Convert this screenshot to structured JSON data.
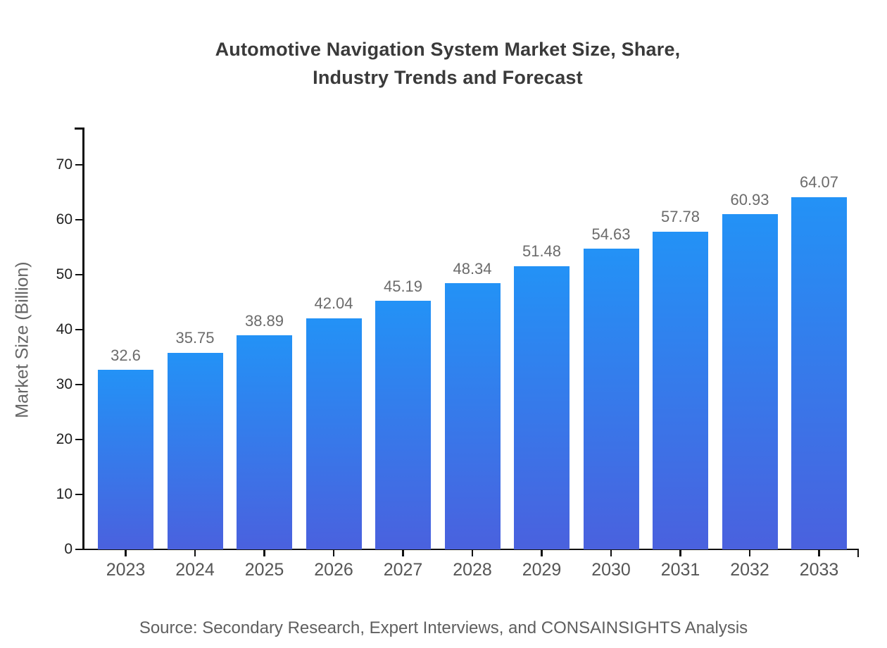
{
  "title": {
    "line1": "Automotive Navigation System Market Size, Share,",
    "line2": "Industry Trends and Forecast"
  },
  "chart_data": {
    "type": "bar",
    "title": "Automotive Navigation System Market Size, Share, Industry Trends and Forecast",
    "categories": [
      "2023",
      "2024",
      "2025",
      "2026",
      "2027",
      "2028",
      "2029",
      "2030",
      "2031",
      "2032",
      "2033"
    ],
    "values": [
      32.6,
      35.75,
      38.89,
      42.04,
      45.19,
      48.34,
      51.48,
      54.63,
      57.78,
      60.93,
      64.07
    ],
    "value_labels": [
      "32.6",
      "35.75",
      "38.89",
      "42.04",
      "45.19",
      "48.34",
      "51.48",
      "54.63",
      "57.78",
      "60.93",
      "64.07"
    ],
    "xlabel": "",
    "ylabel": "Market Size (Billion)",
    "ylim": [
      0,
      77
    ],
    "yticks": [
      0,
      10,
      20,
      30,
      40,
      50,
      60,
      70
    ],
    "grid": false,
    "legend": false,
    "bar_color_top": "#2392f6",
    "bar_color_bottom": "#4a61de"
  },
  "axis_colors": {
    "axis_line": "#111111",
    "y_tick_label": "#222222",
    "x_tick_label": "#565656",
    "value_label": "#6b6b6b",
    "title_color": "#3a3a3a",
    "ylabel_color": "#666666"
  },
  "source": {
    "text": "Source: Secondary Research, Expert Interviews, and CONSAINSIGHTS Analysis"
  }
}
